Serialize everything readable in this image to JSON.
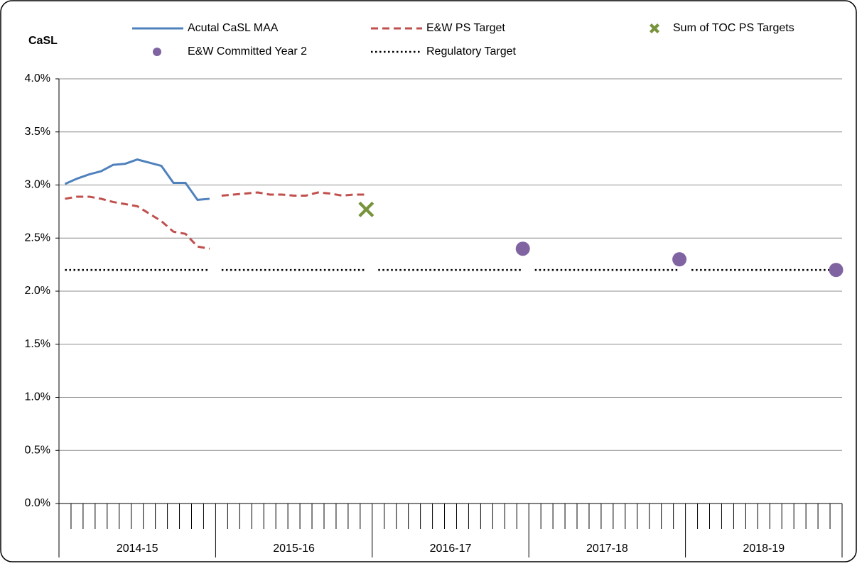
{
  "chart_data": {
    "type": "line",
    "y_label": "CaSL",
    "categories": [
      null,
      null,
      null,
      null,
      null,
      null,
      null,
      null,
      null,
      null,
      null,
      null,
      null,
      null,
      null,
      null,
      null,
      null,
      null,
      null,
      null,
      null,
      null,
      null,
      null,
      null,
      null,
      null,
      null,
      null,
      null,
      null,
      null,
      null,
      null,
      null,
      null,
      null,
      null,
      null,
      null,
      null,
      null,
      null,
      null,
      null,
      null,
      null,
      null,
      null,
      null,
      null,
      null,
      null,
      null,
      null,
      null,
      null,
      null,
      null,
      null,
      null,
      null,
      null,
      null
    ],
    "groups": [
      "2014-15",
      "2015-16",
      "2016-17",
      "2017-18",
      "2018-19"
    ],
    "break_between_groups": true,
    "series": [
      {
        "name": "Acutal CaSL MAA",
        "color": "#4f81bd",
        "style": "solid",
        "values": [
          3.01,
          3.06,
          3.1,
          3.13,
          3.19,
          3.2,
          3.24,
          3.21,
          3.18,
          3.02,
          3.02,
          2.86,
          2.87,
          null,
          null,
          null,
          null,
          null,
          null,
          null,
          null,
          null,
          null,
          null,
          null,
          null,
          null,
          null,
          null,
          null,
          null,
          null,
          null,
          null,
          null,
          null,
          null,
          null,
          null,
          null,
          null,
          null,
          null,
          null,
          null,
          null,
          null,
          null,
          null,
          null,
          null,
          null,
          null,
          null,
          null,
          null,
          null,
          null,
          null,
          null,
          null,
          null,
          null,
          null,
          null
        ]
      },
      {
        "name": "E&W PS Target",
        "color": "#c0504d",
        "style": "dashed",
        "values": [
          2.87,
          2.89,
          2.89,
          2.87,
          2.84,
          2.82,
          2.8,
          2.73,
          2.66,
          2.56,
          2.54,
          2.42,
          2.4,
          2.9,
          2.91,
          2.92,
          2.93,
          2.91,
          2.91,
          2.9,
          2.9,
          2.93,
          2.92,
          2.9,
          2.91,
          2.91,
          null,
          null,
          null,
          null,
          null,
          null,
          null,
          null,
          null,
          null,
          null,
          null,
          null,
          null,
          null,
          null,
          null,
          null,
          null,
          null,
          null,
          null,
          null,
          null,
          null,
          null,
          null,
          null,
          null,
          null,
          null,
          null,
          null,
          null,
          null,
          null,
          null,
          null,
          null
        ]
      },
      {
        "name": "Sum of TOC PS Targets",
        "color": "#77933c",
        "style": "cross",
        "values": [
          null,
          null,
          null,
          null,
          null,
          null,
          null,
          null,
          null,
          null,
          null,
          null,
          null,
          null,
          null,
          null,
          null,
          null,
          null,
          null,
          null,
          null,
          null,
          null,
          null,
          2.77,
          null,
          null,
          null,
          null,
          null,
          null,
          null,
          null,
          null,
          null,
          null,
          null,
          null,
          null,
          null,
          null,
          null,
          null,
          null,
          null,
          null,
          null,
          null,
          null,
          null,
          null,
          null,
          null,
          null,
          null,
          null,
          null,
          null,
          null,
          null,
          null,
          null,
          null,
          null
        ]
      },
      {
        "name": "E&W Committed Year 2",
        "color": "#8064a2",
        "style": "circle",
        "values": [
          null,
          null,
          null,
          null,
          null,
          null,
          null,
          null,
          null,
          null,
          null,
          null,
          null,
          null,
          null,
          null,
          null,
          null,
          null,
          null,
          null,
          null,
          null,
          null,
          null,
          null,
          null,
          null,
          null,
          null,
          null,
          null,
          null,
          null,
          null,
          null,
          null,
          null,
          2.4,
          null,
          null,
          null,
          null,
          null,
          null,
          null,
          null,
          null,
          null,
          null,
          null,
          2.3,
          null,
          null,
          null,
          null,
          null,
          null,
          null,
          null,
          null,
          null,
          null,
          null,
          2.2
        ]
      },
      {
        "name": "Regulatory Target",
        "color": "#000000",
        "style": "dotted",
        "values": [
          2.2,
          2.2,
          2.2,
          2.2,
          2.2,
          2.2,
          2.2,
          2.2,
          2.2,
          2.2,
          2.2,
          2.2,
          2.2,
          2.2,
          2.2,
          2.2,
          2.2,
          2.2,
          2.2,
          2.2,
          2.2,
          2.2,
          2.2,
          2.2,
          2.2,
          2.2,
          2.2,
          2.2,
          2.2,
          2.2,
          2.2,
          2.2,
          2.2,
          2.2,
          2.2,
          2.2,
          2.2,
          2.2,
          2.2,
          2.2,
          2.2,
          2.2,
          2.2,
          2.2,
          2.2,
          2.2,
          2.2,
          2.2,
          2.2,
          2.2,
          2.2,
          2.2,
          2.2,
          2.2,
          2.2,
          2.2,
          2.2,
          2.2,
          2.2,
          2.2,
          2.2,
          2.2,
          2.2,
          2.2,
          2.2
        ]
      }
    ],
    "ylim": [
      0,
      4
    ],
    "yticks": [
      {
        "value": 0,
        "label": "0.0%"
      },
      {
        "value": 0.5,
        "label": "0.5%"
      },
      {
        "value": 1,
        "label": "1.0%"
      },
      {
        "value": 1.5,
        "label": "1.5%"
      },
      {
        "value": 2,
        "label": "2.0%"
      },
      {
        "value": 2.5,
        "label": "2.5%"
      },
      {
        "value": 3,
        "label": "3.0%"
      },
      {
        "value": 3.5,
        "label": "3.5%"
      },
      {
        "value": 4,
        "label": "4.0%"
      }
    ],
    "grid": true
  }
}
